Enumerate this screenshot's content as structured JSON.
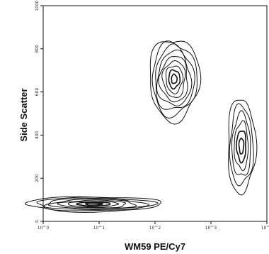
{
  "chart_data": {
    "type": "contour",
    "title": "",
    "xlabel": "WM59 PE/Cy7",
    "ylabel": "Side Scatter",
    "x_scale": "log",
    "y_scale": "linear",
    "x_ticks": [
      "10^0",
      "10^1",
      "10^2",
      "10^3",
      "10^4"
    ],
    "y_ticks": [
      "0",
      "200",
      "400",
      "600",
      "800",
      "1000"
    ],
    "xlim": [
      1,
      10000
    ],
    "ylim": [
      0,
      1000
    ],
    "grid": false,
    "legend": "none",
    "populations": [
      {
        "description": "high side-scatter cluster",
        "center": {
          "x": 220,
          "y": 660
        },
        "spread_decades_x": 0.45,
        "spread_y": 190,
        "levels": 9
      },
      {
        "description": "low side-scatter band",
        "center": {
          "x": 8,
          "y": 80
        },
        "spread_decades_x": 1.2,
        "spread_y": 35,
        "levels": 8
      },
      {
        "description": "bright positive arc",
        "center": {
          "x": 3500,
          "y": 350
        },
        "spread_decades_x": 0.25,
        "spread_y": 220,
        "levels": 6
      }
    ],
    "line_color": "#111111"
  }
}
